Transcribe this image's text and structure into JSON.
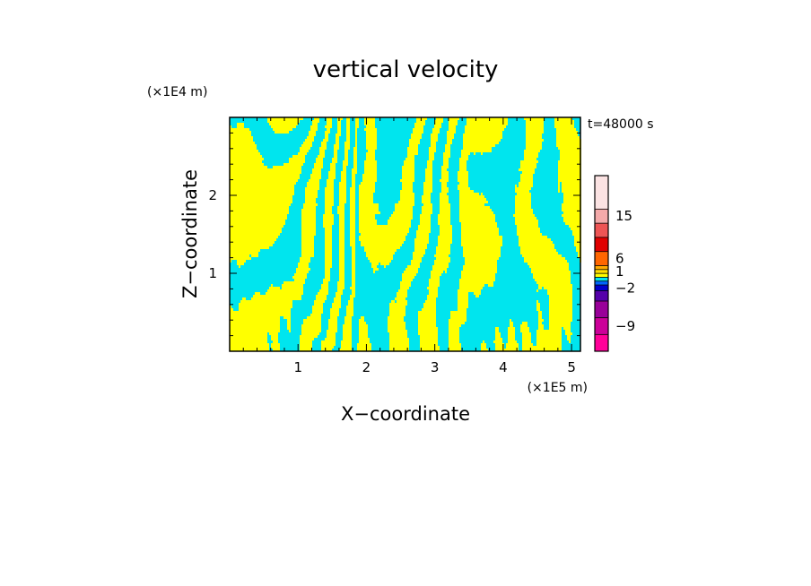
{
  "chart_data": {
    "type": "heatmap",
    "title": "vertical velocity",
    "xlabel": "X−coordinate",
    "ylabel": "Z−coordinate",
    "x_scale_label": "(×1E5 m)",
    "y_scale_label": "(×1E4 m)",
    "time_label": "t=48000 s",
    "xlim": [
      0,
      5.13
    ],
    "ylim": [
      0,
      3.0
    ],
    "x_ticks": [
      {
        "value": 1,
        "label": "1"
      },
      {
        "value": 2,
        "label": "2"
      },
      {
        "value": 3,
        "label": "3"
      },
      {
        "value": 4,
        "label": "4"
      },
      {
        "value": 5,
        "label": "5"
      }
    ],
    "y_ticks": [
      {
        "value": 1,
        "label": "1"
      },
      {
        "value": 2,
        "label": "2"
      }
    ],
    "field_colors": {
      "positive": "#ffff00",
      "negative": "#00e5ee"
    },
    "colorbar": {
      "levels": [
        {
          "color": "#ff0099"
        },
        {
          "color": "#cc0099"
        },
        {
          "color": "#990099"
        },
        {
          "color": "#5500aa"
        },
        {
          "color": "#0000cc"
        },
        {
          "color": "#0066ff"
        },
        {
          "color": "#00e5ee"
        },
        {
          "color": "#ffff00"
        },
        {
          "color": "#ffdd00"
        },
        {
          "color": "#ffaa00"
        },
        {
          "color": "#ff6600"
        },
        {
          "color": "#e00000"
        },
        {
          "color": "#ee5555"
        },
        {
          "color": "#f4aaaa"
        },
        {
          "color": "#fbe3e3"
        }
      ],
      "labels": [
        {
          "value": -9,
          "label": "−9"
        },
        {
          "value": -2,
          "label": "−2"
        },
        {
          "value": 1,
          "label": "1"
        },
        {
          "value": 6,
          "label": "6"
        },
        {
          "value": 15,
          "label": "15"
        }
      ]
    }
  }
}
